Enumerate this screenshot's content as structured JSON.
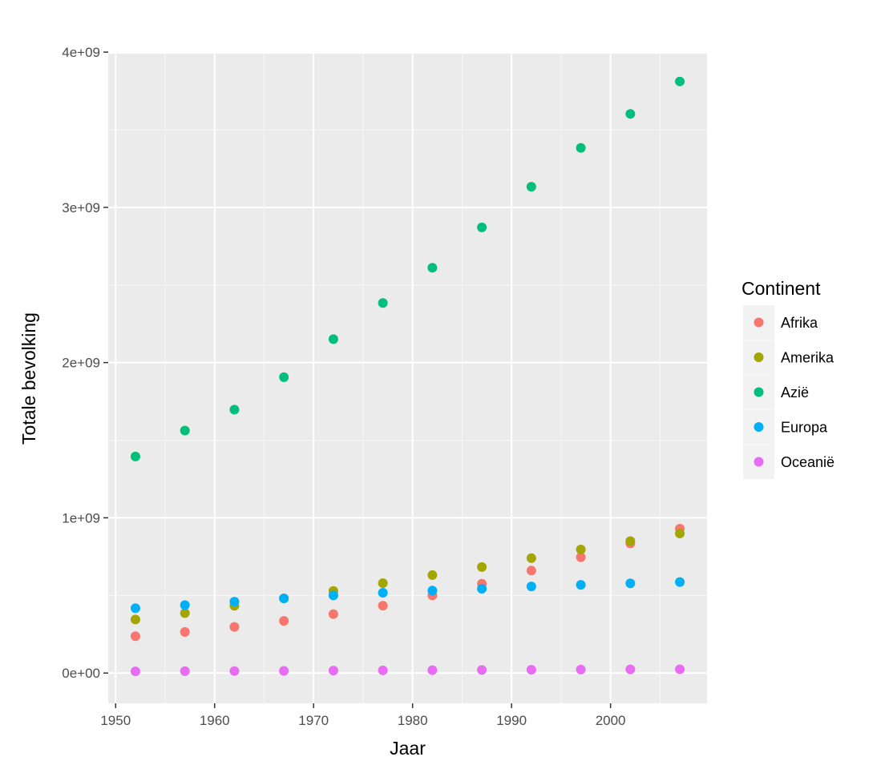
{
  "chart_data": {
    "type": "scatter",
    "xlabel": "Jaar",
    "ylabel": "Totale bevolking",
    "xlim": [
      1949.25,
      2009.75
    ],
    "ylim": [
      -195000000,
      3990000000
    ],
    "x_ticks": [
      1950,
      1960,
      1970,
      1980,
      1990,
      2000
    ],
    "x_tick_labels": [
      "1950",
      "1960",
      "1970",
      "1980",
      "1990",
      "2000"
    ],
    "y_ticks": [
      0,
      1000000000,
      2000000000,
      3000000000,
      4000000000
    ],
    "y_tick_labels": [
      "0e+00",
      "1e+09",
      "2e+09",
      "3e+09",
      "4e+09"
    ],
    "x": [
      1952,
      1957,
      1962,
      1967,
      1972,
      1977,
      1982,
      1987,
      1992,
      1997,
      2002,
      2007
    ],
    "legend": {
      "title": "Continent",
      "position": "right"
    },
    "series": [
      {
        "name": "Afrika",
        "color": "#F8766D",
        "values": [
          237000000,
          265000000,
          297000000,
          336000000,
          380000000,
          434000000,
          500000000,
          575000000,
          660000000,
          746000000,
          835000000,
          930000000
        ]
      },
      {
        "name": "Amerika",
        "color": "#A3A500",
        "values": [
          345000000,
          386000000,
          433000000,
          481000000,
          529000000,
          579000000,
          631000000,
          683000000,
          740000000,
          796000000,
          850000000,
          899000000
        ]
      },
      {
        "name": "Azië",
        "color": "#00BF7D",
        "values": [
          1395000000,
          1562000000,
          1697000000,
          1906000000,
          2151000000,
          2384000000,
          2611000000,
          2871000000,
          3133000000,
          3383000000,
          3602000000,
          3811000000
        ]
      },
      {
        "name": "Europa",
        "color": "#00B0F6",
        "values": [
          418000000,
          438000000,
          460000000,
          481000000,
          500000000,
          517000000,
          531000000,
          543000000,
          558000000,
          568000000,
          578000000,
          586000000
        ]
      },
      {
        "name": "Oceanië",
        "color": "#E76BF3",
        "values": [
          10700000,
          11900000,
          13000000,
          14100000,
          16100000,
          17300000,
          18600000,
          19800000,
          21000000,
          22300000,
          23500000,
          24500000
        ]
      }
    ]
  }
}
